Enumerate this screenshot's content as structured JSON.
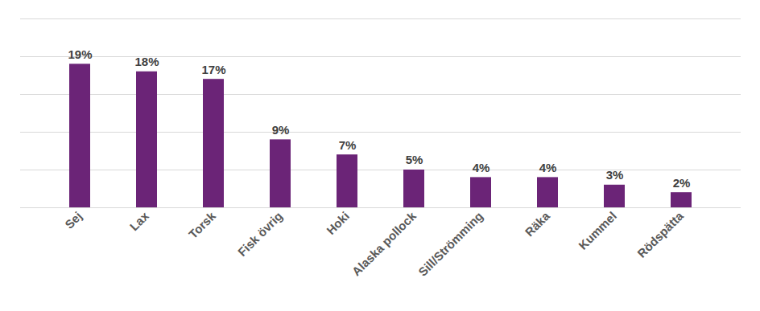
{
  "chart_data": {
    "type": "bar",
    "categories": [
      "Sej",
      "Lax",
      "Torsk",
      "Fisk övrig",
      "Hoki",
      "Alaska pollock",
      "Sill/Strömming",
      "Räka",
      "Kummel",
      "Rödspätta"
    ],
    "values": [
      19,
      18,
      17,
      9,
      7,
      5,
      4,
      4,
      3,
      2
    ],
    "value_labels": [
      "19%",
      "18%",
      "17%",
      "9%",
      "7%",
      "5%",
      "4%",
      "4%",
      "3%",
      "2%"
    ],
    "color": "#6b2477",
    "ylim": [
      0,
      25
    ],
    "yticks": [
      0,
      5,
      10,
      15,
      20,
      25
    ],
    "grid": true,
    "data_labels": true,
    "tick_labels": "x"
  }
}
